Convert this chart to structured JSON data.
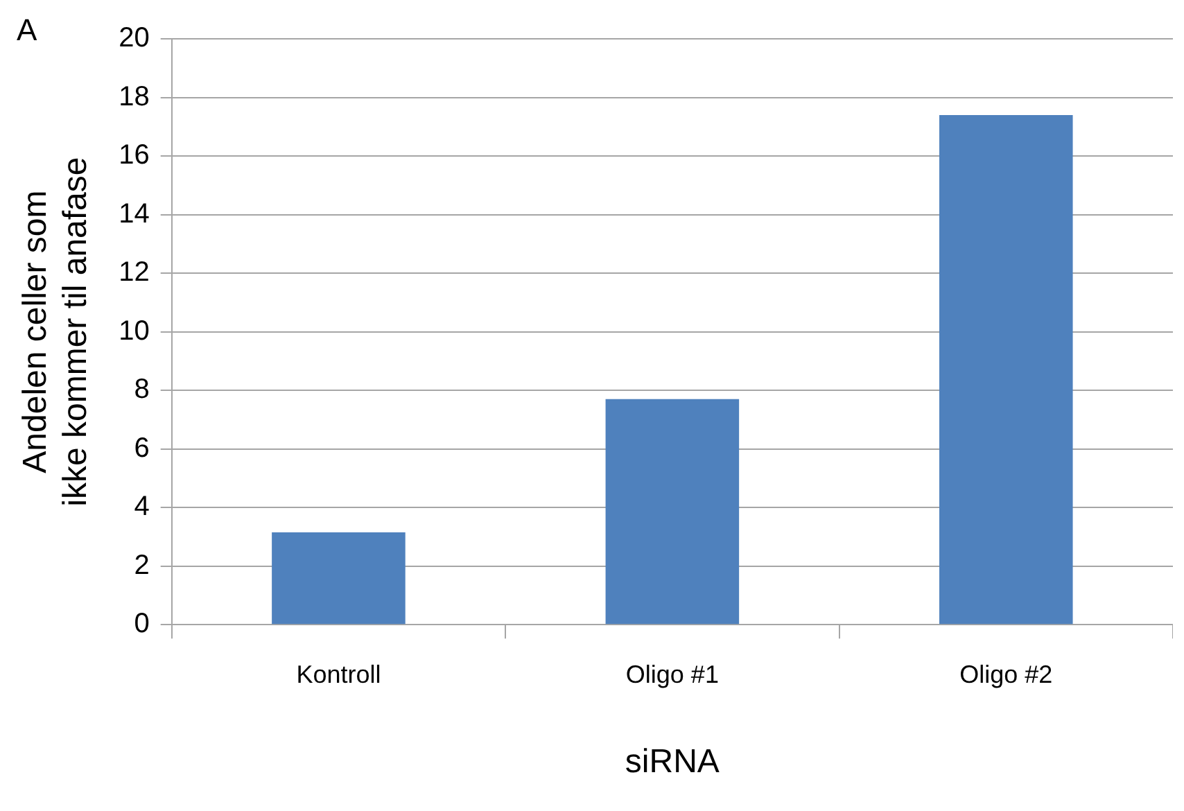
{
  "chart_data": {
    "type": "bar",
    "categories": [
      "Kontroll",
      "Oligo #1",
      "Oligo #2"
    ],
    "values": [
      3.15,
      7.7,
      17.4
    ],
    "color": "#4f81bd",
    "xlabel": "siRNA",
    "ylabel": "Andelen celler som ikke kommer til anafase",
    "ylim": [
      0,
      20
    ],
    "yticks": [
      0,
      2,
      4,
      6,
      8,
      10,
      12,
      14,
      16,
      18,
      20
    ],
    "grid": "y",
    "annotations": [
      "A"
    ]
  }
}
